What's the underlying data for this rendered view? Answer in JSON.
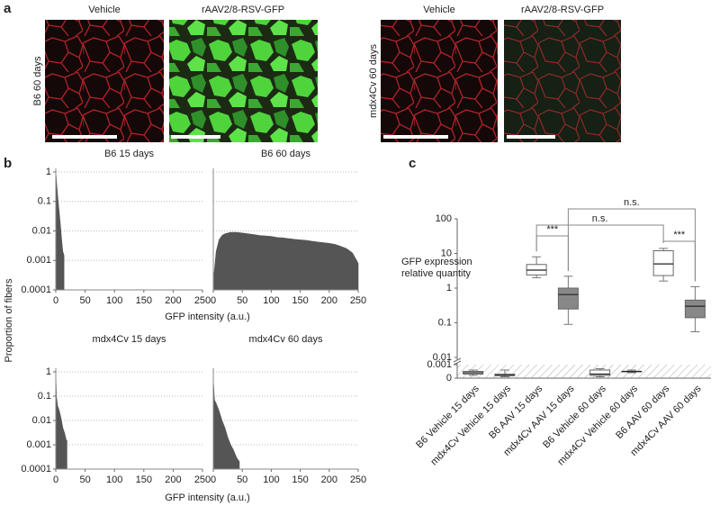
{
  "panel_a": {
    "label": "a",
    "column_titles": [
      "Vehicle",
      "rAAV2/8-RSV-GFP",
      "Vehicle",
      "rAAV2/8-RSV-GFP"
    ],
    "row_labels": [
      "B6 60 days",
      "mdx4Cv 60 days"
    ]
  },
  "panel_b": {
    "label": "b",
    "ylabel": "Proportion of fibers"
  },
  "panel_c": {
    "label": "c"
  },
  "chart_data": [
    {
      "type": "area",
      "title": "B6 15 days",
      "color": "#555555",
      "log_scale": true,
      "grid": true,
      "ytick_labels": true,
      "x": [
        0,
        2,
        4,
        6,
        8,
        10,
        12,
        14
      ],
      "values": [
        1,
        0.3,
        0.1,
        0.04,
        0.015,
        0.005,
        0.002,
        0.0015
      ],
      "xlim": [
        0,
        250
      ],
      "xticks": [
        0,
        50,
        100,
        150,
        200,
        250
      ],
      "ylim": [
        0.0001,
        1
      ],
      "yticks": [
        1,
        0.1,
        0.01,
        0.001,
        0.0001
      ]
    },
    {
      "type": "area",
      "title": "B6 60 days",
      "xlabel": "GFP intensity (a.u.)",
      "color": "#555555",
      "log_scale": true,
      "grid": true,
      "ytick_labels": false,
      "x": [
        1,
        5,
        10,
        15,
        20,
        30,
        40,
        50,
        60,
        70,
        80,
        90,
        100,
        110,
        120,
        130,
        140,
        150,
        160,
        170,
        180,
        190,
        200,
        210,
        220,
        230,
        240,
        250
      ],
      "values": [
        0.0003,
        0.002,
        0.005,
        0.007,
        0.008,
        0.009,
        0.009,
        0.0085,
        0.008,
        0.0075,
        0.007,
        0.0068,
        0.0065,
        0.006,
        0.0058,
        0.0055,
        0.0052,
        0.005,
        0.0048,
        0.0045,
        0.0042,
        0.004,
        0.0038,
        0.0035,
        0.003,
        0.0025,
        0.0018,
        0.0008
      ],
      "xlim": [
        0,
        250
      ],
      "xticks": [
        0,
        50,
        100,
        150,
        200,
        250
      ],
      "ylim": [
        0.0001,
        1
      ],
      "yticks": [
        1,
        0.1,
        0.01,
        0.001,
        0.0001
      ]
    },
    {
      "type": "area",
      "title": "mdx4Cv 15 days",
      "color": "#555555",
      "log_scale": true,
      "grid": true,
      "ytick_labels": true,
      "x": [
        0,
        1,
        3,
        6,
        9,
        12,
        15,
        18,
        19
      ],
      "values": [
        1,
        0.1,
        0.04,
        0.025,
        0.012,
        0.005,
        0.003,
        0.0015,
        0.0015
      ],
      "xlim": [
        0,
        250
      ],
      "xticks": [
        0,
        50,
        100,
        150,
        200,
        250
      ],
      "ylim": [
        0.0001,
        1
      ],
      "yticks": [
        1,
        0.1,
        0.01,
        0.001,
        0.0001
      ]
    },
    {
      "type": "area",
      "title": "mdx4Cv 60 days",
      "xlabel": "GFP intensity (a.u.)",
      "color": "#555555",
      "log_scale": true,
      "grid": true,
      "ytick_labels": false,
      "x": [
        0,
        2,
        5,
        10,
        15,
        20,
        25,
        30,
        35,
        40,
        45
      ],
      "values": [
        0.5,
        0.07,
        0.05,
        0.025,
        0.01,
        0.005,
        0.002,
        0.001,
        0.0006,
        0.0003,
        0.0002
      ],
      "xlim": [
        0,
        250
      ],
      "xticks": [
        0,
        50,
        100,
        150,
        200,
        250
      ],
      "ylim": [
        0.0001,
        1
      ],
      "yticks": [
        1,
        0.1,
        0.01,
        0.001,
        0.0001
      ]
    },
    {
      "type": "box",
      "ylabel": [
        "GFP expression",
        "relative quantity"
      ],
      "log_scale": true,
      "axis_break": [
        0.001,
        0.01
      ],
      "ylim": [
        0,
        100
      ],
      "yticks": [
        0,
        0.001,
        0.01,
        0.1,
        1,
        10,
        100
      ],
      "categories": [
        "B6 Vehicle 15 days",
        "mdx4Cv Vehicle 15 days",
        "B6 AAV 15 days",
        "mdx4Cv AAV 15 days",
        "B6 Vehicle 60 days",
        "mdx4Cv Vehicle 60 days",
        "B6 AAV 60 days",
        "mdx4Cv AAV 60 days"
      ],
      "colors": [
        "#ffffff",
        "#888888",
        "#ffffff",
        "#888888",
        "#ffffff",
        "#888888",
        "#ffffff",
        "#888888"
      ],
      "boxes": [
        {
          "min": 0.0002,
          "q1": 0.0003,
          "median": 0.0004,
          "q3": 0.0005,
          "max": 0.0006
        },
        {
          "min": 0.0001,
          "q1": 0.0002,
          "median": 0.0002,
          "q3": 0.0003,
          "max": 0.0006
        },
        {
          "min": 2,
          "q1": 2.4,
          "median": 3.3,
          "q3": 4.8,
          "max": 8
        },
        {
          "min": 0.09,
          "q1": 0.25,
          "median": 0.65,
          "q3": 1,
          "max": 2.2
        },
        {
          "min": 0.0001,
          "q1": 0.0002,
          "median": 0.0003,
          "q3": 0.0006,
          "max": 0.0007
        },
        {
          "min": 0.0004,
          "q1": 0.0005,
          "median": 0.0005,
          "q3": 0.0005,
          "max": 0.0006
        },
        {
          "min": 1.6,
          "q1": 2.3,
          "median": 5,
          "q3": 12,
          "max": 14
        },
        {
          "min": 0.055,
          "q1": 0.14,
          "median": 0.3,
          "q3": 0.45,
          "max": 1.1
        }
      ],
      "annotations": [
        {
          "text": "***",
          "from": 2,
          "to": 3
        },
        {
          "text": "***",
          "from": 6,
          "to": 7
        },
        {
          "text": "n.s.",
          "from": 2,
          "to": 6
        },
        {
          "text": "n.s.",
          "from": 3,
          "to": 7
        }
      ]
    }
  ]
}
